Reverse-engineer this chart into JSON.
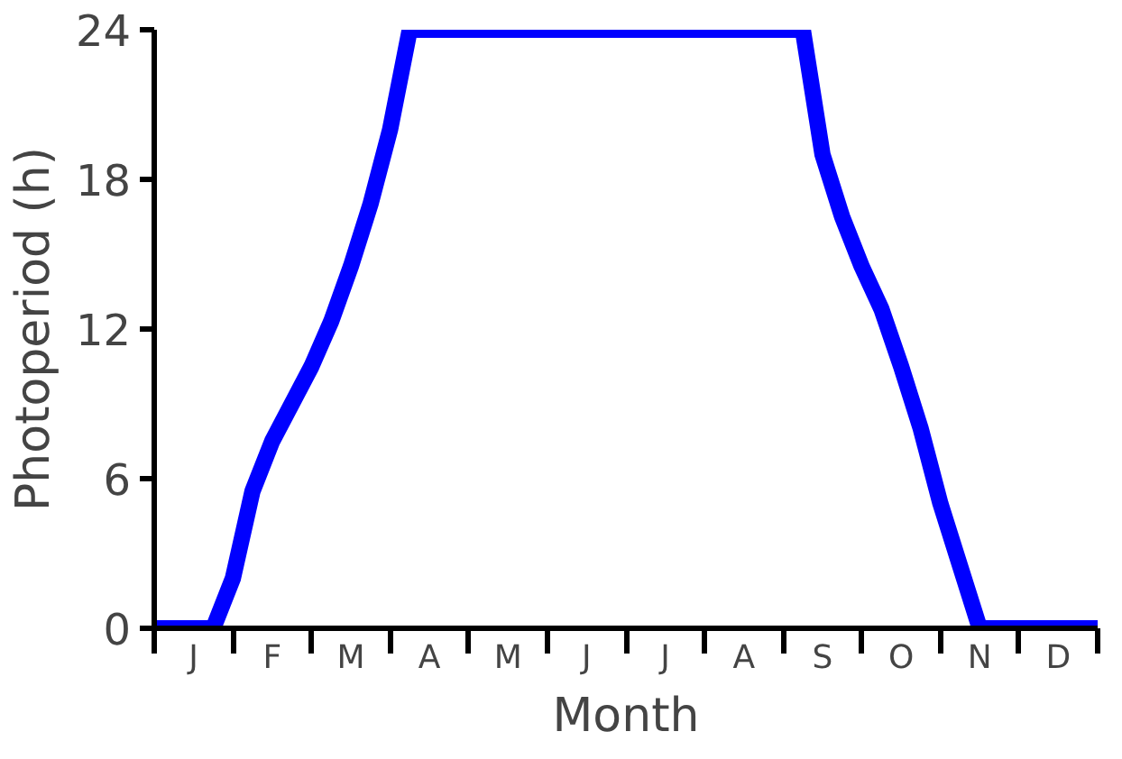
{
  "chart_data": {
    "type": "line",
    "xlabel": "Month",
    "ylabel": "Photoperiod (h)",
    "categories": [
      null,
      null,
      "J",
      null,
      null,
      null,
      "F",
      null,
      null,
      null,
      "M",
      null,
      null,
      null,
      "A",
      null,
      null,
      null,
      "M",
      null,
      null,
      null,
      "J",
      null,
      null,
      null,
      "J",
      null,
      null,
      null,
      "A",
      null,
      null,
      null,
      "S",
      null,
      null,
      null,
      "O",
      null,
      null,
      null,
      "N",
      null,
      null,
      null,
      "D",
      null,
      null
    ],
    "series": [
      {
        "color": "#0000ff",
        "values": [
          0,
          0,
          0,
          0,
          2,
          5.5,
          7.5,
          9,
          10.5,
          12.3,
          14.5,
          17,
          20,
          24,
          24,
          24,
          24,
          24,
          24,
          24,
          24,
          24,
          24,
          24,
          24,
          24,
          24,
          24,
          24,
          24,
          24,
          24,
          24,
          24,
          19,
          16.5,
          14.5,
          12.8,
          10.5,
          8,
          5,
          2.5,
          0,
          0,
          0,
          0,
          0,
          0,
          0
        ]
      }
    ],
    "ylim": [
      0,
      24
    ],
    "yticks": [
      0,
      6,
      12,
      18,
      24
    ],
    "grid": false,
    "line_style": "solid"
  }
}
